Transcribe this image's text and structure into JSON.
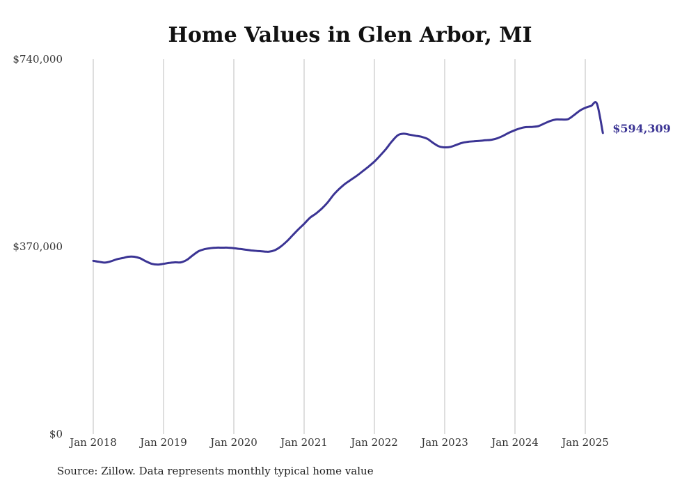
{
  "chart_data": {
    "type": "line",
    "title": "Home Values in Glen Arbor, MI",
    "xlabel": "",
    "ylabel": "",
    "ylim": [
      0,
      740000
    ],
    "yticks": [
      {
        "value": 0,
        "label": "$0"
      },
      {
        "value": 370000,
        "label": "$370,000"
      },
      {
        "value": 740000,
        "label": "$740,000"
      }
    ],
    "xticks": [
      {
        "value": "2018-01",
        "label": "Jan 2018"
      },
      {
        "value": "2019-01",
        "label": "Jan 2019"
      },
      {
        "value": "2020-01",
        "label": "Jan 2020"
      },
      {
        "value": "2021-01",
        "label": "Jan 2021"
      },
      {
        "value": "2022-01",
        "label": "Jan 2022"
      },
      {
        "value": "2023-01",
        "label": "Jan 2023"
      },
      {
        "value": "2024-01",
        "label": "Jan 2024"
      },
      {
        "value": "2025-01",
        "label": "Jan 2025"
      }
    ],
    "grid": {
      "vertical": true,
      "horizontal": false
    },
    "line_color": "#3b3494",
    "end_label": "$594,309",
    "series": [
      {
        "x": [
          "2018-01",
          "2018-02",
          "2018-03",
          "2018-04",
          "2018-05",
          "2018-06",
          "2018-07",
          "2018-08",
          "2018-09",
          "2018-10",
          "2018-11",
          "2018-12",
          "2019-01",
          "2019-02",
          "2019-03",
          "2019-04",
          "2019-05",
          "2019-06",
          "2019-07",
          "2019-08",
          "2019-09",
          "2019-10",
          "2019-11",
          "2019-12",
          "2020-01",
          "2020-02",
          "2020-03",
          "2020-04",
          "2020-05",
          "2020-06",
          "2020-07",
          "2020-08",
          "2020-09",
          "2020-10",
          "2020-11",
          "2020-12",
          "2021-01",
          "2021-02",
          "2021-03",
          "2021-04",
          "2021-05",
          "2021-06",
          "2021-07",
          "2021-08",
          "2021-09",
          "2021-10",
          "2021-11",
          "2021-12",
          "2022-01",
          "2022-02",
          "2022-03",
          "2022-04",
          "2022-05",
          "2022-06",
          "2022-07",
          "2022-08",
          "2022-09",
          "2022-10",
          "2022-11",
          "2022-12",
          "2023-01",
          "2023-02",
          "2023-03",
          "2023-04",
          "2023-05",
          "2023-06",
          "2023-07",
          "2023-08",
          "2023-09",
          "2023-10",
          "2023-11",
          "2023-12",
          "2024-01",
          "2024-02",
          "2024-03",
          "2024-04",
          "2024-05",
          "2024-06",
          "2024-07",
          "2024-08",
          "2024-09",
          "2024-10",
          "2024-11",
          "2024-12",
          "2025-01",
          "2025-02",
          "2025-03",
          "2025-04"
        ],
        "values": [
          342000,
          340000,
          338500,
          341000,
          345000,
          347500,
          350000,
          350000,
          347000,
          341000,
          336000,
          334500,
          336000,
          338000,
          339000,
          339000,
          344000,
          353000,
          361000,
          365000,
          367000,
          368000,
          368000,
          368000,
          367000,
          365500,
          364000,
          362500,
          361500,
          360500,
          360000,
          363000,
          370000,
          380000,
          392000,
          404000,
          415000,
          427000,
          435000,
          445000,
          457000,
          472000,
          484000,
          494000,
          502000,
          510000,
          519000,
          528000,
          538000,
          550000,
          563000,
          578000,
          590000,
          593000,
          591000,
          589000,
          587000,
          583000,
          575000,
          568000,
          566000,
          567000,
          571000,
          575000,
          577000,
          578000,
          579000,
          580000,
          581000,
          584000,
          589000,
          595000,
          600000,
          604000,
          606000,
          606500,
          608000,
          613000,
          618000,
          621000,
          621000,
          621500,
          629000,
          638000,
          644000,
          648000,
          652000,
          594309
        ]
      }
    ]
  },
  "footer": {
    "source": "Source: Zillow. Data represents monthly typical home value"
  }
}
